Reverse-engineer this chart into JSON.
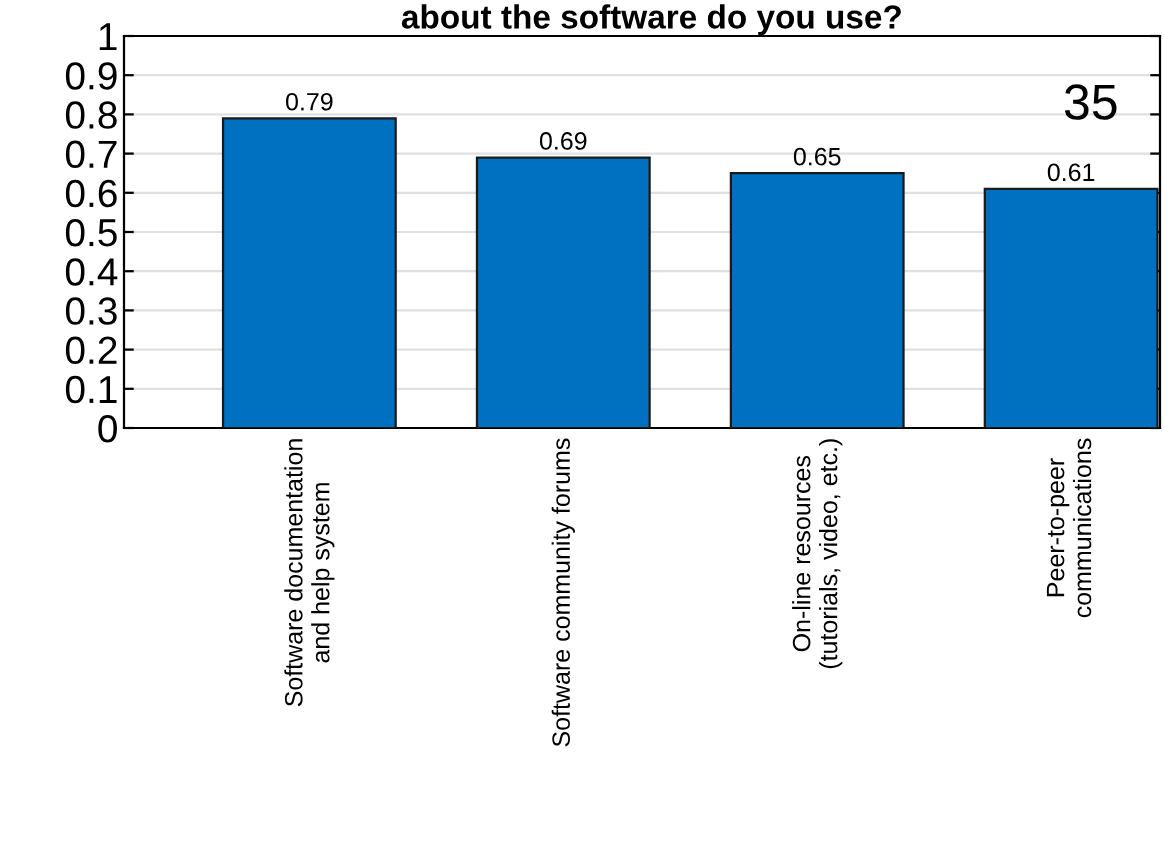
{
  "chart_data": {
    "type": "bar",
    "title": "about the software do you use?",
    "categories": [
      "Software documentation\nand help system",
      "Software community forums",
      "On-line resources\n(tutorials, video, etc.)",
      "Peer-to-peer\ncommunications"
    ],
    "values": [
      0.79,
      0.69,
      0.65,
      0.61
    ],
    "color": "#0070c0",
    "data_labels": true,
    "ylim": [
      0,
      1
    ],
    "yticks": [
      0,
      0.1,
      0.2,
      0.3,
      0.4,
      0.5,
      0.6,
      0.7,
      0.8,
      0.9,
      1
    ],
    "grid": "y",
    "annotations": [
      "35"
    ]
  }
}
